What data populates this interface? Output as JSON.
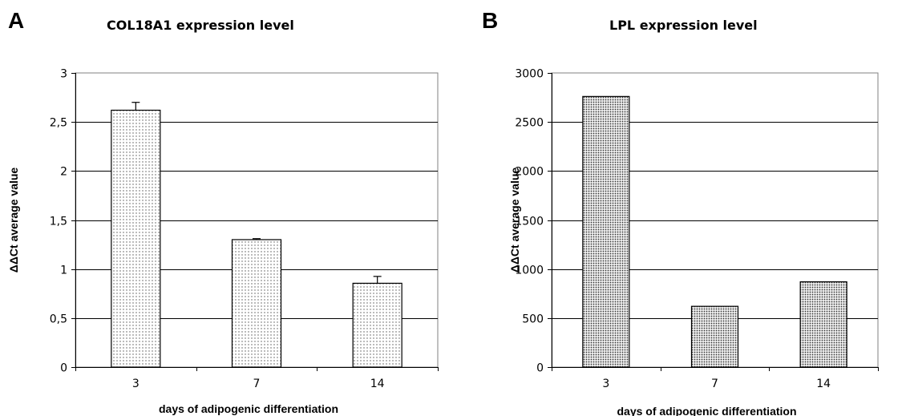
{
  "chart_data": [
    {
      "type": "bar",
      "panel_label": "A",
      "title": "COL18A1 expression level",
      "xlabel": "days of adipogenic differentiation",
      "ylabel": "ΔΔCt average value",
      "categories": [
        "3",
        "7",
        "14"
      ],
      "values": [
        2.62,
        1.3,
        0.855
      ],
      "error_plus": [
        0.08,
        0.01,
        0.07
      ],
      "ylim": [
        0,
        3
      ],
      "yticks": [
        0,
        0.5,
        1,
        1.5,
        2,
        2.5,
        3
      ],
      "ytick_labels": [
        "0",
        "0,5",
        "1",
        "1,5",
        "2",
        "2,5",
        "3"
      ],
      "grid": true,
      "fill_pattern": "sparse-dots"
    },
    {
      "type": "bar",
      "panel_label": "B",
      "title": "LPL expression level",
      "xlabel": "days of adipogenic differentiation",
      "ylabel": "ΔΔCt average value",
      "categories": [
        "3",
        "7",
        "14"
      ],
      "values": [
        2760,
        620,
        870
      ],
      "ylim": [
        0,
        3000
      ],
      "yticks": [
        0,
        500,
        1000,
        1500,
        2000,
        2500,
        3000
      ],
      "ytick_labels": [
        "0",
        "500",
        "1000",
        "1500",
        "2000",
        "2500",
        "3000"
      ],
      "grid": true,
      "fill_pattern": "dense-dots"
    }
  ]
}
